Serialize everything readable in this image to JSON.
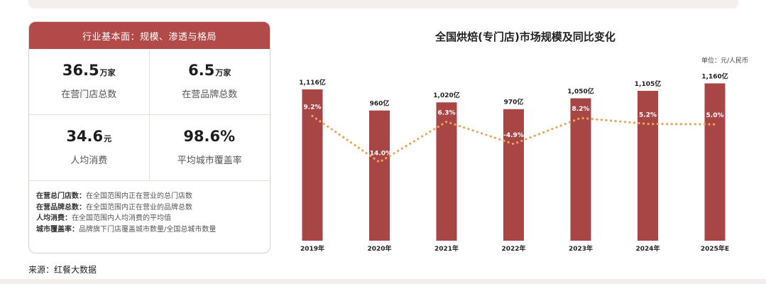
{
  "panel": {
    "header": "行业基本面：规模、渗透与格局",
    "stats": [
      {
        "value": "36.5",
        "unit": "万家",
        "label": "在营门店总数"
      },
      {
        "value": "6.5",
        "unit": "万家",
        "label": "在营品牌总数"
      },
      {
        "value": "34.6",
        "unit": "元",
        "label": "人均消费"
      },
      {
        "value": "98.6%",
        "unit": "",
        "label": "平均城市覆盖率"
      }
    ],
    "notes": [
      {
        "key": "在营总门店数：",
        "desc": "在全国范围内正在营业的总门店数"
      },
      {
        "key": "在营品牌总数：",
        "desc": "在全国范围内正在营业的品牌总数"
      },
      {
        "key": "人均消费：",
        "desc": "在全国范围内人均消费的平均值"
      },
      {
        "key": "城市覆盖率：",
        "desc": "品牌旗下门店覆盖城市数量/全国总城市数量"
      }
    ]
  },
  "source": "来源：红餐大数据",
  "chart_data": {
    "type": "bar",
    "title": "全国烘焙(专门店)市场规模及同比变化",
    "unit_note": "单位：元/人民币",
    "categories": [
      "2019年",
      "2020年",
      "2021年",
      "2022年",
      "2023年",
      "2024年",
      "2025年E"
    ],
    "series": [
      {
        "values": [
          1116,
          960,
          1020,
          970,
          1050,
          1105,
          1160
        ],
        "labels": [
          "1,116亿",
          "960亿",
          "1,020亿",
          "970亿",
          "1,050亿",
          "1,105亿",
          "1,160亿"
        ]
      },
      {
        "values": [
          9.2,
          -14.0,
          6.3,
          -4.9,
          8.2,
          5.2,
          5.0
        ],
        "labels": [
          "9.2%",
          "-14.0%",
          "6.3%",
          "-4.9%",
          "8.2%",
          "5.2%",
          "5.0%"
        ]
      }
    ],
    "colors": {
      "bar": "#a84545",
      "line": "#f0a35a",
      "label": "#ffffff"
    },
    "legend": "none",
    "grid": false
  }
}
